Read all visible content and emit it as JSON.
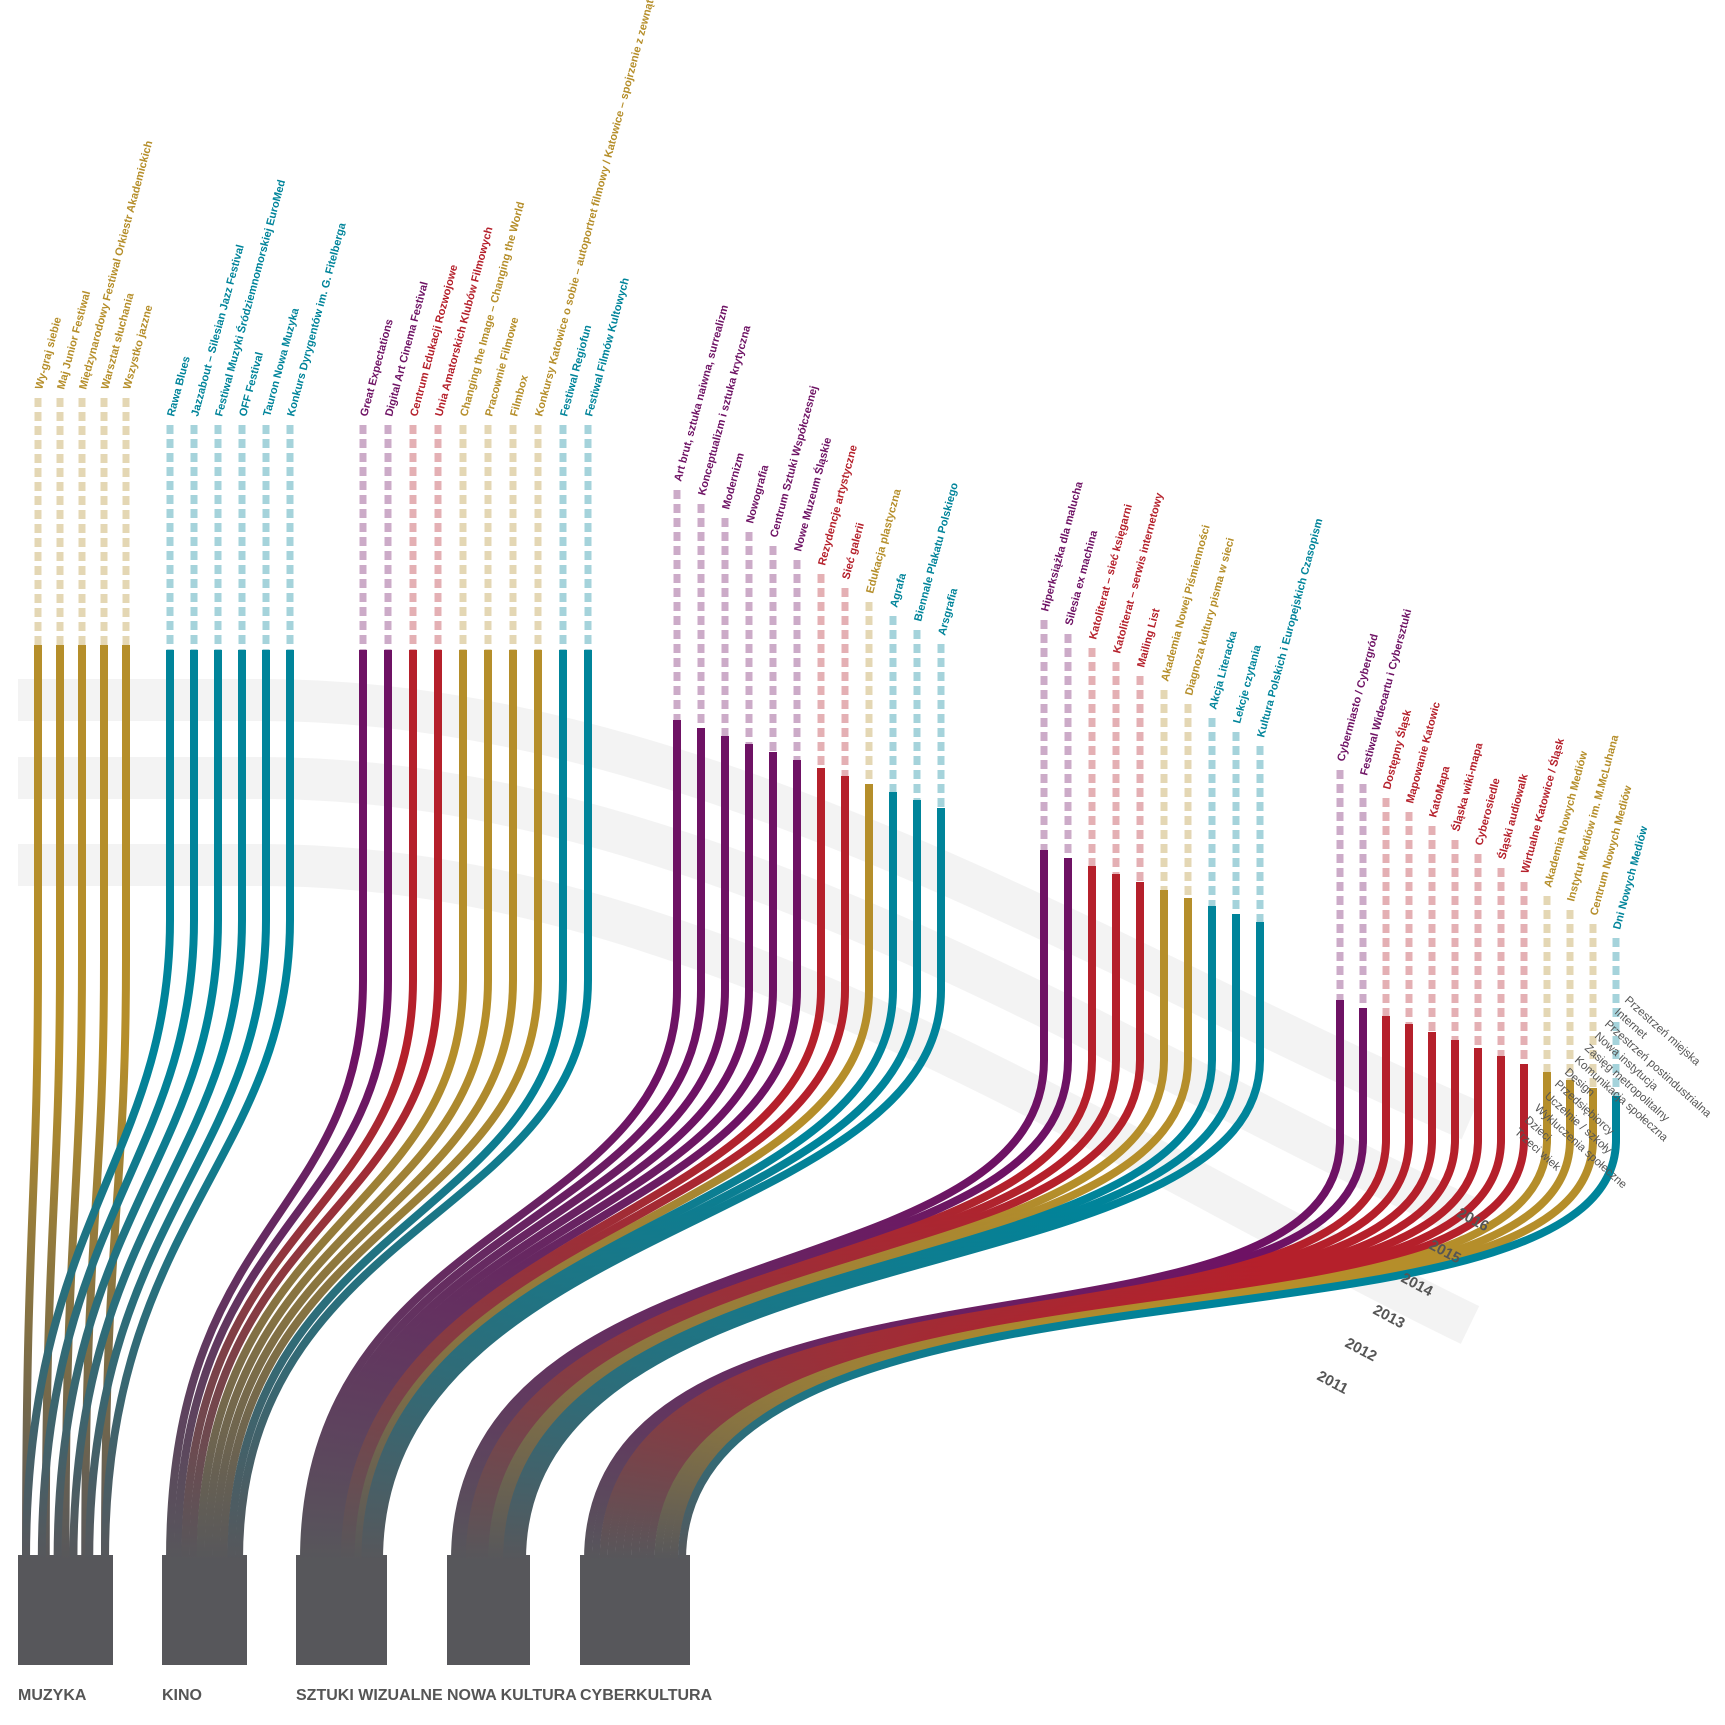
{
  "colors": {
    "gold": "#b58e2a",
    "teal": "#00849a",
    "purple": "#6e1264",
    "red": "#b5202b",
    "gray": "#57575b",
    "band": "#f2f2f2"
  },
  "categories": [
    {
      "label": "MUZYKA"
    },
    {
      "label": "KINO"
    },
    {
      "label": "SZTUKI WIZUALNE"
    },
    {
      "label": "NOWA KULTURA"
    },
    {
      "label": "CYBERKULTURA"
    }
  ],
  "years": [
    "2016",
    "2015",
    "2014",
    "2013",
    "2012",
    "2011"
  ],
  "themes": [
    "Przestrzeń miejska",
    "Internet",
    "Przestrzeń postindustrialna",
    "Nowa instytucja",
    "Zasięg metropolitalny",
    "Komunikacja społeczna",
    "Design",
    "Przedsiębiorcy",
    "Uczelnie / szkoły",
    "Wykluczenia społeczne",
    "Dzieci",
    "Trzeci wiek"
  ],
  "projects": [
    {
      "cat": 0,
      "color": "gold",
      "label": "Wy-graj siebie"
    },
    {
      "cat": 0,
      "color": "gold",
      "label": "Maj Junior Festiwal"
    },
    {
      "cat": 0,
      "color": "gold",
      "label": "Międzynarodowy Festiwal Orkiestr Akademickich"
    },
    {
      "cat": 0,
      "color": "gold",
      "label": "Warsztat słuchania"
    },
    {
      "cat": 0,
      "color": "gold",
      "label": "Wszystko jazzne"
    },
    {
      "cat": 1,
      "color": "teal",
      "label": "Rawa Blues"
    },
    {
      "cat": 1,
      "color": "teal",
      "label": "Jazzabout – Silesian Jazz Festival"
    },
    {
      "cat": 1,
      "color": "teal",
      "label": "Festiwal Muzyki Śródziemnomorskiej EuroMed"
    },
    {
      "cat": 1,
      "color": "teal",
      "label": "OFF Festival"
    },
    {
      "cat": 1,
      "color": "teal",
      "label": "Tauron Nowa Muzyka"
    },
    {
      "cat": 1,
      "color": "teal",
      "label": "Konkurs Dyrygentów im. G. Fitelberga"
    },
    {
      "cat": 2,
      "color": "purple",
      "label": "Great Expectations"
    },
    {
      "cat": 2,
      "color": "purple",
      "label": "Digital Art Cinema Festival"
    },
    {
      "cat": 2,
      "color": "red",
      "label": "Centrum Edukacji Rozwojowe"
    },
    {
      "cat": 2,
      "color": "red",
      "label": "Unia Amatorskich Klubów Filmowych"
    },
    {
      "cat": 2,
      "color": "gold",
      "label": "Changing the Image – Changing the World"
    },
    {
      "cat": 2,
      "color": "gold",
      "label": "Pracownie Filmowe"
    },
    {
      "cat": 2,
      "color": "gold",
      "label": "Filmbox"
    },
    {
      "cat": 2,
      "color": "gold",
      "label": "Konkursy Katowice o sobie – autoportret filmowy / Katowice – spojrzenie z zewnątrz"
    },
    {
      "cat": 2,
      "color": "teal",
      "label": "Festiwal Regiofun"
    },
    {
      "cat": 2,
      "color": "teal",
      "label": "Festiwal Filmów Kultowych"
    },
    {
      "cat": 3,
      "color": "purple",
      "label": "Art brut, sztuka naiwna, surrealizm"
    },
    {
      "cat": 3,
      "color": "purple",
      "label": "Konceptualizm i sztuka krytyczna"
    },
    {
      "cat": 3,
      "color": "purple",
      "label": "Modernizm"
    },
    {
      "cat": 3,
      "color": "purple",
      "label": "Nowografia"
    },
    {
      "cat": 3,
      "color": "purple",
      "label": "Centrum Sztuki Współczesnej"
    },
    {
      "cat": 3,
      "color": "purple",
      "label": "Nowe Muzeum Śląskie"
    },
    {
      "cat": 3,
      "color": "red",
      "label": "Rezydencje artystyczne"
    },
    {
      "cat": 3,
      "color": "red",
      "label": "Sieć galerii"
    },
    {
      "cat": 3,
      "color": "gold",
      "label": "Edukacja plastyczna"
    },
    {
      "cat": 3,
      "color": "teal",
      "label": "Agrafa"
    },
    {
      "cat": 3,
      "color": "teal",
      "label": "Biennale Plakatu Polskiego"
    },
    {
      "cat": 3,
      "color": "teal",
      "label": "Arsgrafia"
    },
    {
      "cat": 4,
      "color": "purple",
      "label": "Hiperksiążka dla malucha"
    },
    {
      "cat": 4,
      "color": "purple",
      "label": "Silesia ex machina"
    },
    {
      "cat": 4,
      "color": "red",
      "label": "Katoliterat – sieć księgarni"
    },
    {
      "cat": 4,
      "color": "red",
      "label": "Katoliterat – serwis internetowy"
    },
    {
      "cat": 4,
      "color": "red",
      "label": "Mailing List"
    },
    {
      "cat": 4,
      "color": "gold",
      "label": "Akademia Nowej Piśmienności"
    },
    {
      "cat": 4,
      "color": "gold",
      "label": "Diagnoza kultury pisma w sieci"
    },
    {
      "cat": 4,
      "color": "teal",
      "label": "Akcja Literacka"
    },
    {
      "cat": 4,
      "color": "teal",
      "label": "Lekcje czytania"
    },
    {
      "cat": 4,
      "color": "teal",
      "label": "Kultura Polskich i Europejskich Czasopism"
    },
    {
      "cat": 5,
      "color": "purple",
      "label": "Cybermiasto / Cybergród"
    },
    {
      "cat": 5,
      "color": "purple",
      "label": "Festiwal Wideoartu i Cybersztuki"
    },
    {
      "cat": 5,
      "color": "red",
      "label": "Dostępny Śląsk"
    },
    {
      "cat": 5,
      "color": "red",
      "label": "Mapowanie Katowic"
    },
    {
      "cat": 5,
      "color": "red",
      "label": "KatoMapa"
    },
    {
      "cat": 5,
      "color": "red",
      "label": "Śląska wiki-mapa"
    },
    {
      "cat": 5,
      "color": "red",
      "label": "Cyberosiedle"
    },
    {
      "cat": 5,
      "color": "red",
      "label": "Śląski audiowalk"
    },
    {
      "cat": 5,
      "color": "red",
      "label": "Wirtualne Katowice / Śląsk"
    },
    {
      "cat": 5,
      "color": "gold",
      "label": "Akademia Nowych Mediów"
    },
    {
      "cat": 5,
      "color": "gold",
      "label": "Instytut Mediów im. M.McLuhana"
    },
    {
      "cat": 5,
      "color": "gold",
      "label": "Centrum Nowych Mediów"
    },
    {
      "cat": 5,
      "color": "teal",
      "label": "Dni Nowych Mediów"
    }
  ]
}
